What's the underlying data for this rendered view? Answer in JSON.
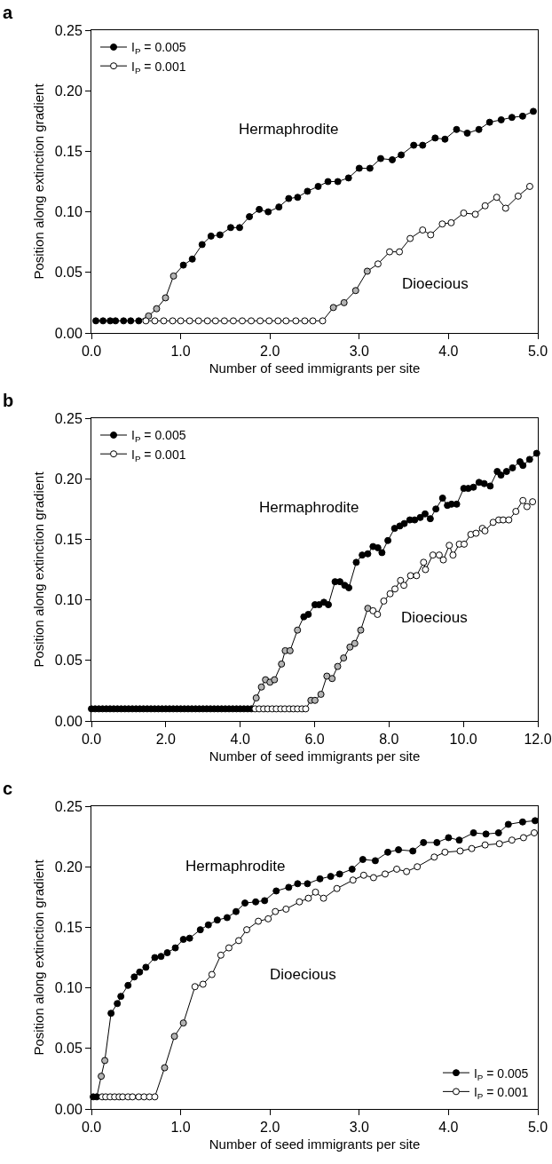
{
  "chart_data": [
    {
      "type": "line",
      "title": "a",
      "xlabel": "Number of seed immigrants per site",
      "ylabel": "Position along extinction gradient",
      "marker": "circle",
      "legend": "top left",
      "xlim": [
        0,
        5
      ],
      "ylim": [
        0,
        0.25
      ],
      "xticks": [
        {
          "value": 0,
          "label": "0.0"
        },
        {
          "value": 1,
          "label": "1.0"
        },
        {
          "value": 2,
          "label": "2.0"
        },
        {
          "value": 3,
          "label": "3.0"
        },
        {
          "value": 4,
          "label": "4.0"
        },
        {
          "value": 5,
          "label": "5.0"
        }
      ],
      "yticks": [
        {
          "value": 0,
          "label": "0.00"
        },
        {
          "value": 0.05,
          "label": "0.05"
        },
        {
          "value": 0.1,
          "label": "0.10"
        },
        {
          "value": 0.15,
          "label": "0.15"
        },
        {
          "value": 0.2,
          "label": "0.20"
        },
        {
          "value": 0.25,
          "label": "0.25"
        }
      ],
      "annotations": [
        "Hermaphrodite",
        "Dioecious"
      ],
      "series": [
        {
          "name": "I$_{P}$ = 0.005",
          "color": "#000000",
          "x": [
            0.05,
            0.13,
            0.21,
            0.27,
            0.36,
            0.44,
            0.53,
            0.64,
            0.73,
            0.83,
            0.92,
            1.03,
            1.13,
            1.24,
            1.34,
            1.44,
            1.56,
            1.66,
            1.77,
            1.88,
            1.98,
            2.1,
            2.21,
            2.31,
            2.42,
            2.54,
            2.65,
            2.76,
            2.88,
            3.0,
            3.12,
            3.24,
            3.37,
            3.47,
            3.61,
            3.71,
            3.85,
            3.96,
            4.09,
            4.21,
            4.34,
            4.46,
            4.59,
            4.71,
            4.83,
            4.95
          ],
          "values": [
            0.01,
            0.01,
            0.01,
            0.01,
            0.01,
            0.01,
            0.01,
            0.014,
            0.02,
            0.029,
            0.047,
            0.056,
            0.061,
            0.073,
            0.08,
            0.081,
            0.087,
            0.087,
            0.096,
            0.102,
            0.1,
            0.104,
            0.111,
            0.112,
            0.117,
            0.121,
            0.125,
            0.125,
            0.128,
            0.136,
            0.136,
            0.144,
            0.143,
            0.147,
            0.155,
            0.155,
            0.161,
            0.16,
            0.168,
            0.165,
            0.168,
            0.174,
            0.176,
            0.178,
            0.179,
            0.183
          ],
          "colors": [
            "#000000",
            "#000000",
            "#000000",
            "#000000",
            "#000000",
            "#000000",
            "#000000",
            "#b3b3b3",
            "#b3b3b3",
            "#b3b3b3",
            "#b3b3b3",
            "#000000",
            "#000000",
            "#000000",
            "#000000",
            "#000000",
            "#000000",
            "#000000",
            "#000000",
            "#000000",
            "#000000",
            "#000000",
            "#000000",
            "#000000",
            "#000000",
            "#000000",
            "#000000",
            "#000000",
            "#000000",
            "#000000",
            "#000000",
            "#000000",
            "#000000",
            "#000000",
            "#000000",
            "#000000",
            "#000000",
            "#000000",
            "#000000",
            "#000000",
            "#000000",
            "#000000",
            "#000000",
            "#000000",
            "#000000",
            "#000000"
          ]
        },
        {
          "name": "I$_{P}$ = 0.001",
          "color": "#ffffff",
          "x": [
            0.61,
            0.71,
            0.81,
            0.91,
            1.0,
            1.1,
            1.2,
            1.3,
            1.39,
            1.49,
            1.59,
            1.69,
            1.79,
            1.89,
            1.99,
            2.09,
            2.18,
            2.29,
            2.39,
            2.48,
            2.59,
            2.71,
            2.83,
            2.96,
            3.09,
            3.21,
            3.34,
            3.45,
            3.57,
            3.71,
            3.8,
            3.93,
            4.03,
            4.17,
            4.3,
            4.41,
            4.54,
            4.64,
            4.78,
            4.91
          ],
          "values": [
            0.01,
            0.01,
            0.01,
            0.01,
            0.01,
            0.01,
            0.01,
            0.01,
            0.01,
            0.01,
            0.01,
            0.01,
            0.01,
            0.01,
            0.01,
            0.01,
            0.01,
            0.01,
            0.01,
            0.01,
            0.01,
            0.021,
            0.025,
            0.035,
            0.051,
            0.057,
            0.067,
            0.067,
            0.078,
            0.085,
            0.081,
            0.09,
            0.091,
            0.099,
            0.098,
            0.105,
            0.112,
            0.103,
            0.113,
            0.121
          ],
          "colors": [
            "#ffffff",
            "#ffffff",
            "#ffffff",
            "#ffffff",
            "#ffffff",
            "#ffffff",
            "#ffffff",
            "#ffffff",
            "#ffffff",
            "#ffffff",
            "#ffffff",
            "#ffffff",
            "#ffffff",
            "#ffffff",
            "#ffffff",
            "#ffffff",
            "#ffffff",
            "#ffffff",
            "#ffffff",
            "#ffffff",
            "#ffffff",
            "#b3b3b3",
            "#b3b3b3",
            "#b3b3b3",
            "#b3b3b3",
            "#ffffff",
            "#ffffff",
            "#ffffff",
            "#ffffff",
            "#ffffff",
            "#ffffff",
            "#ffffff",
            "#ffffff",
            "#ffffff",
            "#ffffff",
            "#ffffff",
            "#ffffff",
            "#ffffff",
            "#ffffff",
            "#ffffff"
          ]
        }
      ]
    },
    {
      "type": "line",
      "title": "b",
      "xlabel": "Number of seed immigrants per site",
      "ylabel": "Position along extinction gradient",
      "marker": "circle",
      "legend": "top left",
      "xlim": [
        0,
        12
      ],
      "ylim": [
        0,
        0.25
      ],
      "xticks": [
        {
          "value": 0,
          "label": "0.0"
        },
        {
          "value": 2,
          "label": "2.0"
        },
        {
          "value": 4,
          "label": "4.0"
        },
        {
          "value": 6,
          "label": "6.0"
        },
        {
          "value": 8,
          "label": "8.0"
        },
        {
          "value": 10,
          "label": "10.0"
        },
        {
          "value": 12,
          "label": "12.0"
        }
      ],
      "yticks": [
        {
          "value": 0,
          "label": "0.00"
        },
        {
          "value": 0.05,
          "label": "0.05"
        },
        {
          "value": 0.1,
          "label": "0.10"
        },
        {
          "value": 0.15,
          "label": "0.15"
        },
        {
          "value": 0.2,
          "label": "0.20"
        },
        {
          "value": 0.25,
          "label": "0.25"
        }
      ],
      "annotations": [
        "Hermaphrodite",
        "Dioecious"
      ],
      "series": [
        {
          "name": "I$_{P}$ = 0.005",
          "color": "#000000",
          "x": [
            0.0,
            0.1,
            0.2,
            0.3,
            0.4,
            0.5,
            0.6,
            0.7,
            0.8,
            0.9,
            1.0,
            1.1,
            1.2,
            1.3,
            1.4,
            1.5,
            1.6,
            1.7,
            1.8,
            1.9,
            2.0,
            2.1,
            2.2,
            2.3,
            2.4,
            2.5,
            2.6,
            2.7,
            2.8,
            2.9,
            3.0,
            3.1,
            3.2,
            3.3,
            3.4,
            3.5,
            3.6,
            3.7,
            3.8,
            3.9,
            4.0,
            4.1,
            4.2,
            4.3,
            4.43,
            4.57,
            4.68,
            4.8,
            4.92,
            5.11,
            5.21,
            5.34,
            5.54,
            5.71,
            5.83,
            6.01,
            6.12,
            6.25,
            6.37,
            6.55,
            6.68,
            6.81,
            6.92,
            7.12,
            7.28,
            7.43,
            7.57,
            7.7,
            7.81,
            7.97,
            8.15,
            8.29,
            8.41,
            8.56,
            8.69,
            8.84,
            8.97,
            9.11,
            9.26,
            9.44,
            9.57,
            9.68,
            9.82,
            10.01,
            10.13,
            10.27,
            10.42,
            10.56,
            10.72,
            10.91,
            11.01,
            11.16,
            11.32,
            11.52,
            11.6,
            11.78,
            11.97
          ],
          "values": [
            0.01,
            0.01,
            0.01,
            0.01,
            0.01,
            0.01,
            0.01,
            0.01,
            0.01,
            0.01,
            0.01,
            0.01,
            0.01,
            0.01,
            0.01,
            0.01,
            0.01,
            0.01,
            0.01,
            0.01,
            0.01,
            0.01,
            0.01,
            0.01,
            0.01,
            0.01,
            0.01,
            0.01,
            0.01,
            0.01,
            0.01,
            0.01,
            0.01,
            0.01,
            0.01,
            0.01,
            0.01,
            0.01,
            0.01,
            0.01,
            0.01,
            0.01,
            0.01,
            0.01,
            0.019,
            0.028,
            0.034,
            0.032,
            0.034,
            0.047,
            0.058,
            0.058,
            0.075,
            0.086,
            0.088,
            0.096,
            0.096,
            0.098,
            0.096,
            0.115,
            0.115,
            0.112,
            0.11,
            0.131,
            0.137,
            0.138,
            0.144,
            0.143,
            0.139,
            0.149,
            0.159,
            0.161,
            0.163,
            0.166,
            0.166,
            0.168,
            0.171,
            0.167,
            0.175,
            0.184,
            0.178,
            0.179,
            0.179,
            0.192,
            0.192,
            0.193,
            0.197,
            0.196,
            0.194,
            0.206,
            0.203,
            0.206,
            0.209,
            0.214,
            0.211,
            0.216,
            0.221
          ],
          "colors": [
            "#000000",
            "#000000",
            "#000000",
            "#000000",
            "#000000",
            "#000000",
            "#000000",
            "#000000",
            "#000000",
            "#000000",
            "#000000",
            "#000000",
            "#000000",
            "#000000",
            "#000000",
            "#000000",
            "#000000",
            "#000000",
            "#000000",
            "#000000",
            "#000000",
            "#000000",
            "#000000",
            "#000000",
            "#000000",
            "#000000",
            "#000000",
            "#000000",
            "#000000",
            "#000000",
            "#000000",
            "#000000",
            "#000000",
            "#000000",
            "#000000",
            "#000000",
            "#000000",
            "#000000",
            "#000000",
            "#000000",
            "#000000",
            "#000000",
            "#000000",
            "#000000",
            "#b3b3b3",
            "#b3b3b3",
            "#b3b3b3",
            "#b3b3b3",
            "#b3b3b3",
            "#b3b3b3",
            "#b3b3b3",
            "#b3b3b3",
            "#b3b3b3",
            "#000000",
            "#000000",
            "#000000",
            "#000000",
            "#000000",
            "#000000",
            "#000000",
            "#000000",
            "#000000",
            "#000000",
            "#000000",
            "#000000",
            "#000000",
            "#000000",
            "#000000",
            "#000000",
            "#000000",
            "#000000",
            "#000000",
            "#000000",
            "#000000",
            "#000000",
            "#000000",
            "#000000",
            "#000000",
            "#000000",
            "#000000",
            "#000000",
            "#000000",
            "#000000",
            "#000000",
            "#000000",
            "#000000",
            "#000000",
            "#000000",
            "#000000",
            "#000000",
            "#000000",
            "#000000",
            "#000000",
            "#000000",
            "#000000",
            "#000000",
            "#000000"
          ]
        },
        {
          "name": "I$_{P}$ = 0.001",
          "color": "#ffffff",
          "x": [
            4.4,
            4.51,
            4.63,
            4.74,
            4.86,
            4.97,
            5.09,
            5.2,
            5.32,
            5.43,
            5.54,
            5.66,
            5.76,
            5.9,
            6.01,
            6.17,
            6.33,
            6.47,
            6.62,
            6.78,
            6.95,
            7.08,
            7.24,
            7.43,
            7.57,
            7.69,
            7.86,
            8.03,
            8.16,
            8.31,
            8.4,
            8.58,
            8.74,
            8.93,
            8.98,
            9.18,
            9.35,
            9.46,
            9.62,
            9.72,
            9.89,
            10.02,
            10.2,
            10.34,
            10.51,
            10.58,
            10.8,
            10.95,
            11.07,
            11.22,
            11.41,
            11.6,
            11.71,
            11.86
          ],
          "values": [
            0.01,
            0.01,
            0.01,
            0.01,
            0.01,
            0.01,
            0.01,
            0.01,
            0.01,
            0.01,
            0.01,
            0.01,
            0.01,
            0.017,
            0.017,
            0.022,
            0.037,
            0.035,
            0.045,
            0.052,
            0.061,
            0.064,
            0.075,
            0.093,
            0.091,
            0.088,
            0.099,
            0.105,
            0.109,
            0.116,
            0.112,
            0.12,
            0.12,
            0.131,
            0.125,
            0.137,
            0.137,
            0.133,
            0.145,
            0.137,
            0.146,
            0.146,
            0.154,
            0.155,
            0.159,
            0.157,
            0.164,
            0.166,
            0.166,
            0.166,
            0.173,
            0.182,
            0.177,
            0.181
          ],
          "colors": [
            "#ffffff",
            "#ffffff",
            "#ffffff",
            "#ffffff",
            "#ffffff",
            "#ffffff",
            "#ffffff",
            "#ffffff",
            "#ffffff",
            "#ffffff",
            "#ffffff",
            "#ffffff",
            "#ffffff",
            "#b3b3b3",
            "#b3b3b3",
            "#b3b3b3",
            "#b3b3b3",
            "#b3b3b3",
            "#b3b3b3",
            "#b3b3b3",
            "#b3b3b3",
            "#b3b3b3",
            "#b3b3b3",
            "#b3b3b3",
            "#ffffff",
            "#ffffff",
            "#ffffff",
            "#ffffff",
            "#ffffff",
            "#ffffff",
            "#ffffff",
            "#ffffff",
            "#ffffff",
            "#ffffff",
            "#ffffff",
            "#ffffff",
            "#ffffff",
            "#ffffff",
            "#ffffff",
            "#ffffff",
            "#ffffff",
            "#ffffff",
            "#ffffff",
            "#ffffff",
            "#ffffff",
            "#ffffff",
            "#ffffff",
            "#ffffff",
            "#ffffff",
            "#ffffff",
            "#ffffff",
            "#ffffff",
            "#ffffff",
            "#ffffff"
          ]
        }
      ]
    },
    {
      "type": "line",
      "title": "c",
      "xlabel": "Number of seed immigrants per site",
      "ylabel": "Position along extinction gradient",
      "marker": "circle",
      "legend": "bottom right",
      "xlim": [
        0,
        5
      ],
      "ylim": [
        0,
        0.25
      ],
      "xticks": [
        {
          "value": 0,
          "label": "0.0"
        },
        {
          "value": 1,
          "label": "1.0"
        },
        {
          "value": 2,
          "label": "2.0"
        },
        {
          "value": 3,
          "label": "3.0"
        },
        {
          "value": 4,
          "label": "4.0"
        },
        {
          "value": 5,
          "label": "5.0"
        }
      ],
      "yticks": [
        {
          "value": 0,
          "label": "0.00"
        },
        {
          "value": 0.05,
          "label": "0.05"
        },
        {
          "value": 0.1,
          "label": "0.10"
        },
        {
          "value": 0.15,
          "label": "0.15"
        },
        {
          "value": 0.2,
          "label": "0.20"
        },
        {
          "value": 0.25,
          "label": "0.25"
        }
      ],
      "annotations": [
        "Hermaphrodite",
        "Dioecious"
      ],
      "series": [
        {
          "name": "I$_{P}$ = 0.005",
          "color": "#000000",
          "x": [
            0.02,
            0.06,
            0.11,
            0.15,
            0.22,
            0.29,
            0.33,
            0.41,
            0.48,
            0.54,
            0.61,
            0.71,
            0.78,
            0.85,
            0.94,
            1.03,
            1.1,
            1.22,
            1.31,
            1.41,
            1.52,
            1.62,
            1.72,
            1.84,
            1.94,
            2.07,
            2.21,
            2.31,
            2.42,
            2.56,
            2.68,
            2.78,
            2.92,
            3.04,
            3.18,
            3.32,
            3.44,
            3.6,
            3.72,
            3.87,
            4.0,
            4.12,
            4.28,
            4.42,
            4.56,
            4.67,
            4.83,
            4.97
          ],
          "values": [
            0.01,
            0.01,
            0.027,
            0.04,
            0.079,
            0.087,
            0.093,
            0.102,
            0.109,
            0.113,
            0.117,
            0.125,
            0.126,
            0.129,
            0.133,
            0.14,
            0.141,
            0.148,
            0.152,
            0.156,
            0.158,
            0.163,
            0.17,
            0.171,
            0.172,
            0.18,
            0.183,
            0.186,
            0.186,
            0.19,
            0.192,
            0.194,
            0.198,
            0.206,
            0.205,
            0.212,
            0.214,
            0.213,
            0.22,
            0.22,
            0.224,
            0.222,
            0.228,
            0.227,
            0.228,
            0.235,
            0.237,
            0.238
          ],
          "colors": [
            "#000000",
            "#000000",
            "#b3b3b3",
            "#b3b3b3",
            "#000000",
            "#000000",
            "#000000",
            "#000000",
            "#000000",
            "#000000",
            "#000000",
            "#000000",
            "#000000",
            "#000000",
            "#000000",
            "#000000",
            "#000000",
            "#000000",
            "#000000",
            "#000000",
            "#000000",
            "#000000",
            "#000000",
            "#000000",
            "#000000",
            "#000000",
            "#000000",
            "#000000",
            "#000000",
            "#000000",
            "#000000",
            "#000000",
            "#000000",
            "#000000",
            "#000000",
            "#000000",
            "#000000",
            "#000000",
            "#000000",
            "#000000",
            "#000000",
            "#000000",
            "#000000",
            "#000000",
            "#000000",
            "#000000",
            "#000000",
            "#000000"
          ]
        },
        {
          "name": "I$_{P}$ = 0.001",
          "color": "#ffffff",
          "x": [
            0.12,
            0.16,
            0.21,
            0.26,
            0.31,
            0.35,
            0.41,
            0.46,
            0.53,
            0.59,
            0.65,
            0.71,
            0.82,
            0.93,
            1.03,
            1.16,
            1.25,
            1.35,
            1.45,
            1.54,
            1.65,
            1.74,
            1.87,
            1.98,
            2.06,
            2.18,
            2.33,
            2.43,
            2.51,
            2.6,
            2.75,
            2.93,
            3.05,
            3.16,
            3.29,
            3.42,
            3.53,
            3.65,
            3.84,
            3.96,
            4.13,
            4.26,
            4.41,
            4.57,
            4.71,
            4.84,
            4.96
          ],
          "values": [
            0.01,
            0.01,
            0.01,
            0.01,
            0.01,
            0.01,
            0.01,
            0.01,
            0.01,
            0.01,
            0.01,
            0.01,
            0.034,
            0.06,
            0.071,
            0.101,
            0.103,
            0.111,
            0.127,
            0.133,
            0.139,
            0.148,
            0.155,
            0.157,
            0.163,
            0.165,
            0.171,
            0.174,
            0.179,
            0.174,
            0.182,
            0.189,
            0.193,
            0.191,
            0.194,
            0.198,
            0.196,
            0.2,
            0.208,
            0.212,
            0.213,
            0.215,
            0.218,
            0.219,
            0.222,
            0.224,
            0.228
          ],
          "colors": [
            "#ffffff",
            "#ffffff",
            "#ffffff",
            "#ffffff",
            "#ffffff",
            "#ffffff",
            "#ffffff",
            "#ffffff",
            "#ffffff",
            "#ffffff",
            "#ffffff",
            "#ffffff",
            "#b3b3b3",
            "#b3b3b3",
            "#b3b3b3",
            "#ffffff",
            "#ffffff",
            "#ffffff",
            "#ffffff",
            "#ffffff",
            "#ffffff",
            "#ffffff",
            "#ffffff",
            "#ffffff",
            "#ffffff",
            "#ffffff",
            "#ffffff",
            "#ffffff",
            "#ffffff",
            "#ffffff",
            "#ffffff",
            "#ffffff",
            "#ffffff",
            "#ffffff",
            "#ffffff",
            "#ffffff",
            "#ffffff",
            "#ffffff",
            "#ffffff",
            "#ffffff",
            "#ffffff",
            "#ffffff",
            "#ffffff",
            "#ffffff",
            "#ffffff",
            "#ffffff",
            "#ffffff"
          ]
        }
      ]
    }
  ]
}
